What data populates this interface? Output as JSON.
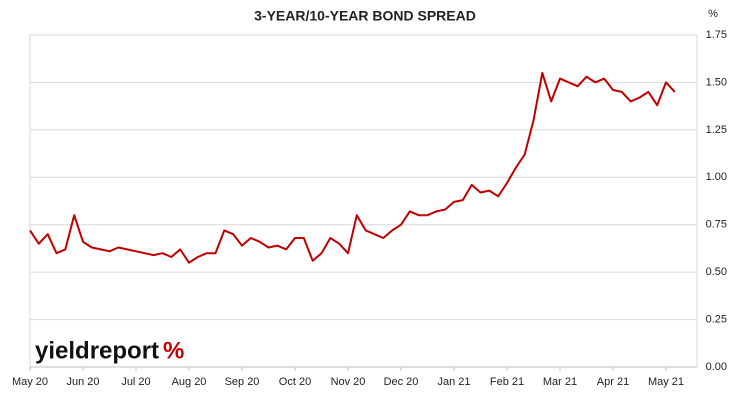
{
  "chart_data": {
    "type": "line",
    "title": "3-YEAR/10-YEAR BOND SPREAD",
    "y_unit": "%",
    "logo_text": "yieldreport",
    "logo_mark": "%",
    "categories": [
      "May 20",
      null,
      null,
      null,
      null,
      null,
      "Jun 20",
      null,
      null,
      null,
      null,
      null,
      "Jul 20",
      null,
      null,
      null,
      null,
      null,
      "Aug 20",
      null,
      null,
      null,
      null,
      null,
      "Sep 20",
      null,
      null,
      null,
      null,
      null,
      "Oct 20",
      null,
      null,
      null,
      null,
      null,
      "Nov 20",
      null,
      null,
      null,
      null,
      null,
      "Dec 20",
      null,
      null,
      null,
      null,
      null,
      "Jan 21",
      null,
      null,
      null,
      null,
      null,
      "Feb 21",
      null,
      null,
      null,
      null,
      null,
      "Mar 21",
      null,
      null,
      null,
      null,
      null,
      "Apr 21",
      null,
      null,
      null,
      null,
      null,
      "May 21",
      null
    ],
    "series": [
      {
        "name": "3-Year/10-Year Spread",
        "color": "#c00000",
        "values": [
          0.72,
          0.65,
          0.7,
          0.6,
          0.62,
          0.8,
          0.66,
          0.63,
          0.62,
          0.61,
          0.63,
          0.62,
          0.61,
          0.6,
          0.59,
          0.6,
          0.58,
          0.62,
          0.55,
          0.58,
          0.6,
          0.6,
          0.72,
          0.7,
          0.64,
          0.68,
          0.66,
          0.63,
          0.64,
          0.62,
          0.68,
          0.68,
          0.56,
          0.6,
          0.68,
          0.65,
          0.6,
          0.8,
          0.72,
          0.7,
          0.68,
          0.72,
          0.75,
          0.82,
          0.8,
          0.8,
          0.82,
          0.83,
          0.87,
          0.88,
          0.96,
          0.92,
          0.93,
          0.9,
          0.97,
          1.05,
          1.12,
          1.3,
          1.55,
          1.4,
          1.52,
          1.5,
          1.48,
          1.53,
          1.5,
          1.52,
          1.46,
          1.45,
          1.4,
          1.42,
          1.45,
          1.38,
          1.5,
          1.45
        ]
      }
    ],
    "ylim": [
      0,
      1.75
    ],
    "yticks": [
      {
        "value": 0,
        "label": "0.00"
      },
      {
        "value": 0.25,
        "label": "0.25"
      },
      {
        "value": 0.5,
        "label": "0.50"
      },
      {
        "value": 0.75,
        "label": "0.75"
      },
      {
        "value": 1,
        "label": "1.00"
      },
      {
        "value": 1.25,
        "label": "1.25"
      },
      {
        "value": 1.5,
        "label": "1.50"
      },
      {
        "value": 1.75,
        "label": "1.75"
      }
    ],
    "grid": true
  }
}
